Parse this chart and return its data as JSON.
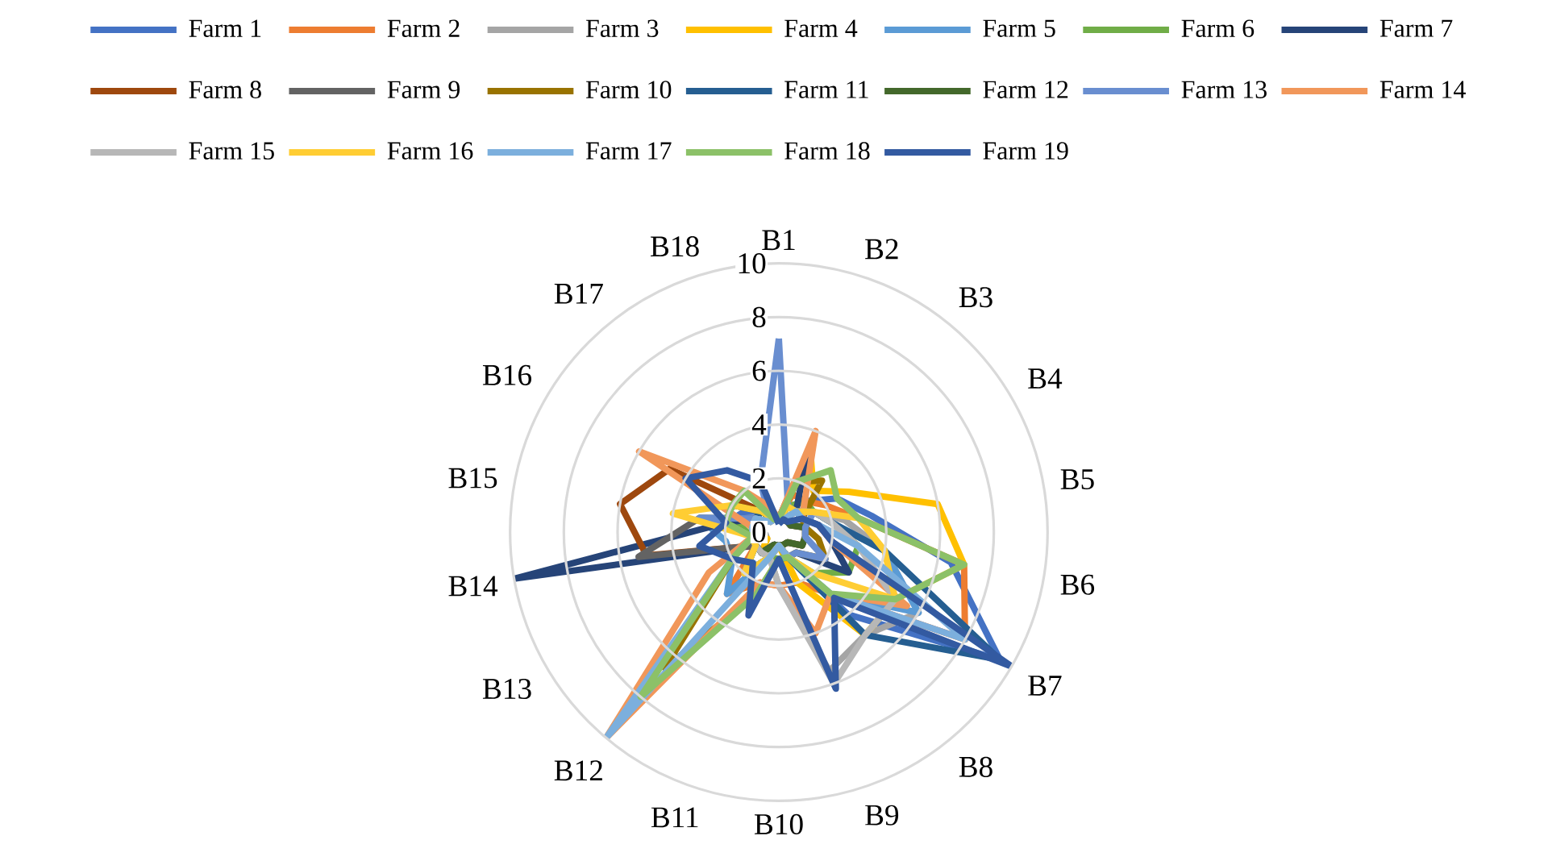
{
  "chart_data": {
    "type": "radar",
    "categories": [
      "B1",
      "B2",
      "B3",
      "B4",
      "B5",
      "B6",
      "B7",
      "B8",
      "B9",
      "B10",
      "B11",
      "B12",
      "B13",
      "B14",
      "B15",
      "B16",
      "B17",
      "B18"
    ],
    "ylim": [
      0,
      10
    ],
    "yticks": [
      0,
      2,
      4,
      6,
      8,
      10
    ],
    "grid": true,
    "legend": "top",
    "line_style": "solid",
    "series": [
      {
        "name": "Farm 1",
        "color": "#4472c4",
        "values": [
          0.5,
          1,
          1.5,
          2.5,
          3.5,
          6.5,
          9.5,
          4,
          1,
          0.5,
          1,
          2,
          1,
          1,
          2,
          1.5,
          1,
          0.5
        ]
      },
      {
        "name": "Farm 2",
        "color": "#ed7d31",
        "values": [
          0.5,
          1.5,
          1.5,
          2,
          3,
          7,
          8,
          3,
          2,
          2,
          2,
          3,
          1,
          1,
          1,
          1,
          1,
          0.5
        ]
      },
      {
        "name": "Farm 3",
        "color": "#a5a5a5",
        "values": [
          0.5,
          0.5,
          1,
          1.5,
          2.5,
          4,
          6,
          5,
          5.5,
          2,
          1,
          1,
          0.5,
          0.5,
          1,
          1,
          0.5,
          0.5
        ]
      },
      {
        "name": "Farm 4",
        "color": "#ffc000",
        "values": [
          0.5,
          3.4,
          2,
          3,
          6,
          7,
          5,
          5,
          2,
          0.5,
          1,
          1,
          0.5,
          1,
          2,
          1,
          1,
          0.5
        ]
      },
      {
        "name": "Farm 5",
        "color": "#5b9bd5",
        "values": [
          0.5,
          1,
          1,
          1.5,
          2,
          4,
          6,
          3,
          1,
          0.5,
          1,
          3,
          2,
          2,
          3,
          1,
          1,
          0.5
        ]
      },
      {
        "name": "Farm 6",
        "color": "#70ad47",
        "values": [
          0.5,
          1,
          1.5,
          1.5,
          2,
          3,
          3,
          2,
          1,
          1,
          1,
          2,
          1,
          1,
          1.5,
          1,
          1,
          0.5
        ]
      },
      {
        "name": "Farm 7",
        "color": "#264478",
        "values": [
          0.5,
          3,
          1,
          1,
          1.5,
          2,
          3,
          1,
          1,
          0.5,
          0.5,
          1,
          1,
          10,
          2,
          1,
          1,
          0.5
        ]
      },
      {
        "name": "Farm 8",
        "color": "#9e480e",
        "values": [
          0.5,
          0.5,
          0.5,
          0.5,
          1,
          1,
          1,
          0.5,
          0.5,
          0.5,
          0.5,
          1,
          1,
          5,
          6,
          4.7,
          1,
          0.5
        ]
      },
      {
        "name": "Farm 9",
        "color": "#636363",
        "values": [
          0.5,
          0.5,
          0.5,
          0.5,
          1,
          1,
          1,
          0.5,
          0.5,
          0.5,
          0.5,
          1,
          1,
          5.3,
          3,
          1,
          1,
          0.5
        ]
      },
      {
        "name": "Farm 10",
        "color": "#997300",
        "values": [
          0.5,
          2,
          2.5,
          1,
          1,
          1.5,
          2,
          1,
          1,
          1,
          2.5,
          6.6,
          2,
          1,
          1,
          1,
          0.5,
          0.5
        ]
      },
      {
        "name": "Farm 11",
        "color": "#255e91",
        "values": [
          0.5,
          1,
          1,
          1.5,
          2,
          4,
          9.5,
          5,
          1,
          0.5,
          0.5,
          1,
          1,
          1,
          1,
          1,
          1,
          0.5
        ]
      },
      {
        "name": "Farm 12",
        "color": "#43682b",
        "values": [
          0.5,
          0.5,
          0.5,
          0.5,
          1,
          1,
          1,
          0.5,
          0.5,
          0.5,
          0.5,
          1,
          1,
          1,
          2,
          2,
          1,
          0.5
        ]
      },
      {
        "name": "Farm 13",
        "color": "#698ed0",
        "values": [
          7.2,
          1,
          1,
          1.5,
          1,
          1,
          2,
          1,
          1,
          0.5,
          1,
          2,
          1,
          1,
          3,
          1,
          0.5,
          2
        ]
      },
      {
        "name": "Farm 14",
        "color": "#f1975a",
        "values": [
          0.5,
          4,
          1.5,
          1,
          1.5,
          2,
          5.5,
          3,
          4,
          2,
          2,
          10,
          3,
          1,
          1,
          6,
          2,
          1
        ]
      },
      {
        "name": "Farm 15",
        "color": "#b7b7b7",
        "values": [
          0.5,
          0.5,
          1,
          1.5,
          2,
          3,
          5,
          5,
          6,
          2,
          1,
          1,
          1,
          1,
          1,
          1,
          0.5,
          0.5
        ]
      },
      {
        "name": "Farm 16",
        "color": "#ffcd33",
        "values": [
          0.5,
          1,
          1,
          1.5,
          3,
          4,
          5,
          2,
          1,
          0.5,
          1,
          2,
          1,
          1,
          4,
          2,
          1,
          0.5
        ]
      },
      {
        "name": "Farm 17",
        "color": "#7cafdd",
        "values": [
          0.5,
          0.5,
          1,
          1,
          1.5,
          3,
          8,
          3,
          1,
          0.5,
          1,
          10,
          2,
          1,
          1,
          1,
          0.5,
          0.5
        ]
      },
      {
        "name": "Farm 18",
        "color": "#8cc168",
        "values": [
          0.5,
          2,
          3,
          2.5,
          3,
          7,
          5,
          3,
          1,
          1,
          2.5,
          8,
          2,
          1,
          2,
          2,
          2,
          0.5
        ]
      },
      {
        "name": "Farm 19",
        "color": "#335aa1",
        "values": [
          0.3,
          0.5,
          0.5,
          1,
          1.5,
          2,
          10,
          3.2,
          6.2,
          1,
          3.3,
          1.5,
          2,
          3,
          2,
          4,
          3,
          2
        ]
      }
    ]
  }
}
